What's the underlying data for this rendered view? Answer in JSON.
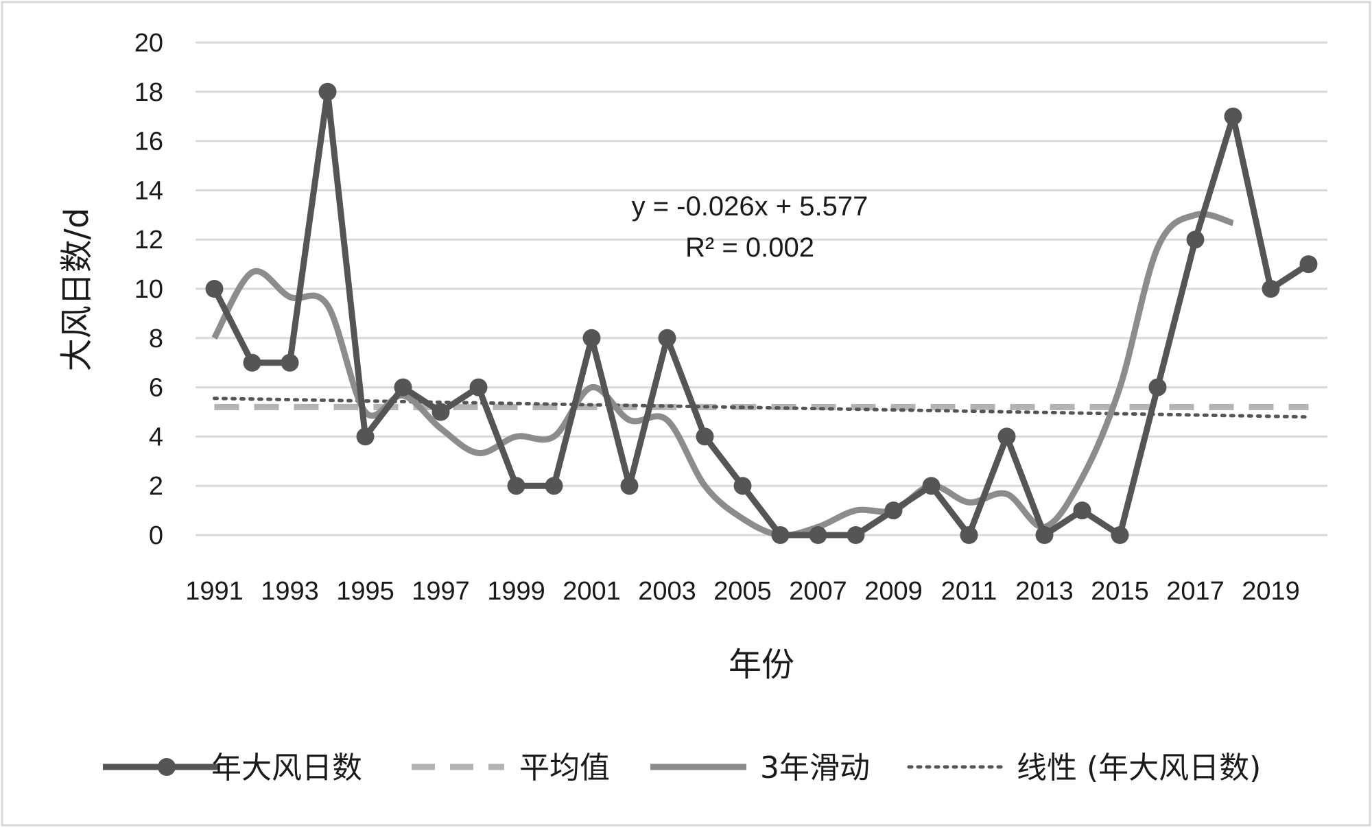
{
  "chart_data": {
    "type": "line",
    "title": "",
    "xlabel": "年份",
    "ylabel": "大风日数/d",
    "ylim": [
      0,
      20
    ],
    "yticks": [
      "0",
      "2",
      "4",
      "6",
      "8",
      "10",
      "12",
      "14",
      "16",
      "18",
      "20"
    ],
    "x": [
      1991,
      1992,
      1993,
      1994,
      1995,
      1996,
      1997,
      1998,
      1999,
      2000,
      2001,
      2002,
      2003,
      2004,
      2005,
      2006,
      2007,
      2008,
      2009,
      2010,
      2011,
      2012,
      2013,
      2014,
      2015,
      2016,
      2017,
      2018,
      2019,
      2020
    ],
    "xtick_labels": [
      "1991",
      "1993",
      "1995",
      "1997",
      "1999",
      "2001",
      "2003",
      "2005",
      "2007",
      "2009",
      "2011",
      "2013",
      "2015",
      "2017",
      "2019"
    ],
    "grid": true,
    "legend_position": "bottom",
    "series": [
      {
        "name": "年大风日数",
        "style": "solid-markers",
        "color": "#555555",
        "values": [
          10,
          7,
          7,
          18,
          4,
          6,
          5,
          6,
          2,
          2,
          8,
          2,
          8,
          4,
          2,
          0,
          0,
          0,
          1,
          2,
          0,
          4,
          0,
          1,
          0,
          6,
          12,
          17,
          10,
          11
        ]
      },
      {
        "name": "平均值",
        "style": "dashed",
        "color": "#b3b3b3",
        "values": [
          5.2,
          5.2,
          5.2,
          5.2,
          5.2,
          5.2,
          5.2,
          5.2,
          5.2,
          5.2,
          5.2,
          5.2,
          5.2,
          5.2,
          5.2,
          5.2,
          5.2,
          5.2,
          5.2,
          5.2,
          5.2,
          5.2,
          5.2,
          5.2,
          5.2,
          5.2,
          5.2,
          5.2,
          5.2,
          5.2
        ]
      },
      {
        "name": "3年滑动",
        "style": "smooth",
        "color": "#8c8c8c",
        "x": [
          1991,
          1992,
          1993,
          1994,
          1995,
          1996,
          1997,
          1998,
          1999,
          2000,
          2001,
          2002,
          2003,
          2004,
          2005,
          2006,
          2007,
          2008,
          2009,
          2010,
          2011,
          2012,
          2013,
          2014,
          2015,
          2016,
          2017,
          2018
        ],
        "values": [
          8.0,
          10.67,
          9.67,
          9.33,
          5.0,
          5.67,
          4.33,
          3.33,
          4.0,
          4.0,
          6.0,
          4.67,
          4.67,
          2.0,
          0.67,
          0.0,
          0.33,
          1.0,
          1.0,
          2.0,
          1.33,
          1.67,
          0.33,
          2.33,
          6.0,
          11.67,
          13.0,
          12.67
        ]
      },
      {
        "name": "线性 (年大风日数)",
        "style": "dotted",
        "color": "#555555",
        "slope": -0.026,
        "intercept": 5.577
      }
    ],
    "annotations": [
      "y = -0.026x + 5.577",
      "R² = 0.002"
    ]
  }
}
